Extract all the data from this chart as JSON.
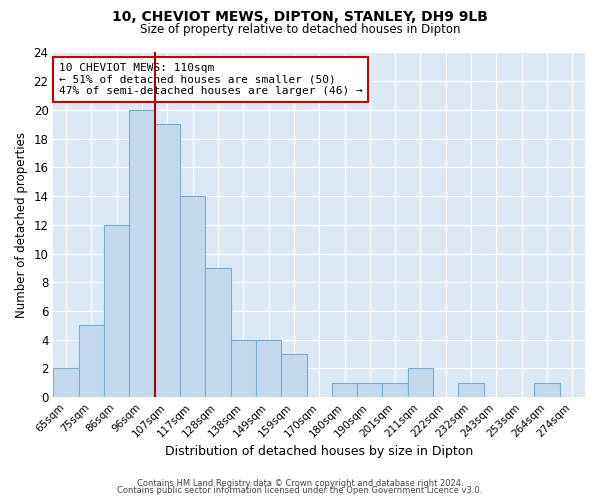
{
  "title": "10, CHEVIOT MEWS, DIPTON, STANLEY, DH9 9LB",
  "subtitle": "Size of property relative to detached houses in Dipton",
  "xlabel": "Distribution of detached houses by size in Dipton",
  "ylabel": "Number of detached properties",
  "bar_labels": [
    "65sqm",
    "75sqm",
    "86sqm",
    "96sqm",
    "107sqm",
    "117sqm",
    "128sqm",
    "138sqm",
    "149sqm",
    "159sqm",
    "170sqm",
    "180sqm",
    "190sqm",
    "201sqm",
    "211sqm",
    "222sqm",
    "232sqm",
    "243sqm",
    "253sqm",
    "264sqm",
    "274sqm"
  ],
  "bar_values": [
    2,
    5,
    12,
    20,
    19,
    14,
    9,
    4,
    4,
    3,
    0,
    1,
    1,
    1,
    2,
    0,
    1,
    0,
    0,
    1,
    0
  ],
  "bar_color": "#c5d9ed",
  "bar_edge_color": "#7aafd4",
  "highlight_line_index": 4,
  "highlight_line_color": "#aa0000",
  "annotation_text": "10 CHEVIOT MEWS: 110sqm\n← 51% of detached houses are smaller (50)\n47% of semi-detached houses are larger (46) →",
  "annotation_box_color": "#ffffff",
  "annotation_box_edge_color": "#cc0000",
  "ylim": [
    0,
    24
  ],
  "yticks": [
    0,
    2,
    4,
    6,
    8,
    10,
    12,
    14,
    16,
    18,
    20,
    22,
    24
  ],
  "footer1": "Contains HM Land Registry data © Crown copyright and database right 2024.",
  "footer2": "Contains public sector information licensed under the Open Government Licence v3.0.",
  "background_color": "#ffffff",
  "plot_bg_color": "#dce9f5",
  "grid_color": "#ffffff"
}
